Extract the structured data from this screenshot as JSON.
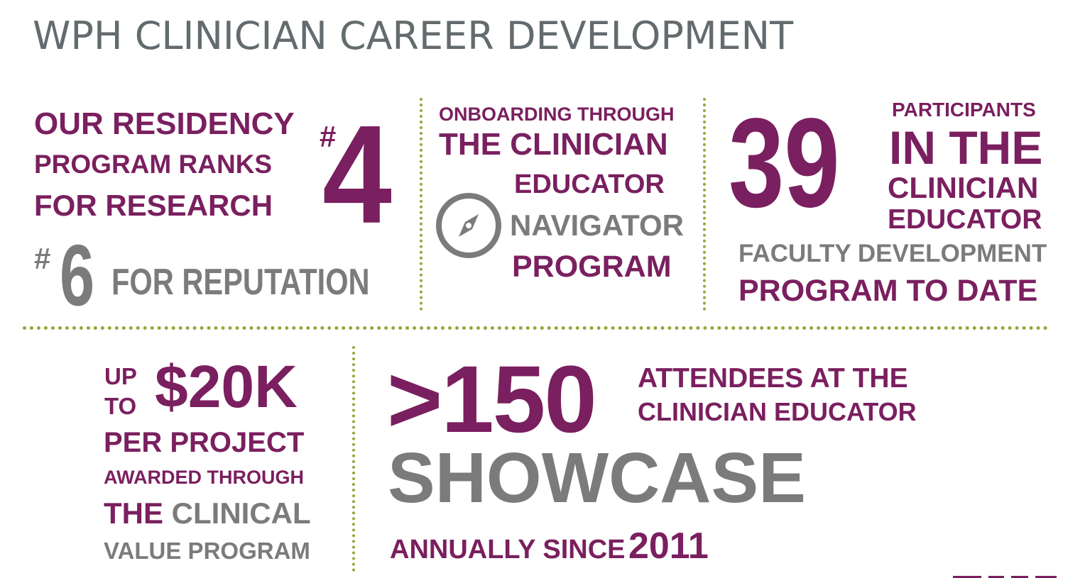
{
  "title": "WPH CLINICIAN CAREER DEVELOPMENT",
  "residency": {
    "line1": "OUR RESIDENCY",
    "line2": "PROGRAM RANKS",
    "line3": "FOR RESEARCH",
    "rank_research_hash": "#",
    "rank_research_number": "4",
    "rank_reputation_hash": "#",
    "rank_reputation_number": "6",
    "reputation_label": "FOR REPUTATION"
  },
  "navigator": {
    "line1": "ONBOARDING THROUGH",
    "line2": "THE CLINICIAN",
    "line3": "EDUCATOR",
    "line4": "NAVIGATOR",
    "line5": "PROGRAM",
    "icon": "compass-icon"
  },
  "faculty": {
    "number": "39",
    "line1": "PARTICIPANTS",
    "line2": "IN THE",
    "line3": "CLINICIAN",
    "line4": "EDUCATOR",
    "line5": "FACULTY DEVELOPMENT",
    "line6": "PROGRAM TO DATE"
  },
  "grant": {
    "up": "UP",
    "to": "TO",
    "amount": "$20K",
    "line1": "PER PROJECT",
    "line2": "AWARDED THROUGH",
    "line3_a": "THE",
    "line3_b": "CLINICAL",
    "line4": "VALUE PROGRAM"
  },
  "showcase": {
    "number": ">150",
    "line1": "ATTENDEES AT THE",
    "line2": "CLINICIAN EDUCATOR",
    "word": "SHOWCASE",
    "annual": "ANNUALLY SINCE",
    "year": "2011"
  },
  "colors": {
    "purple": "#7a1f5f",
    "gray": "#7b7b7b",
    "title_gray": "#646b6e",
    "divider_green": "#9aa33a"
  }
}
